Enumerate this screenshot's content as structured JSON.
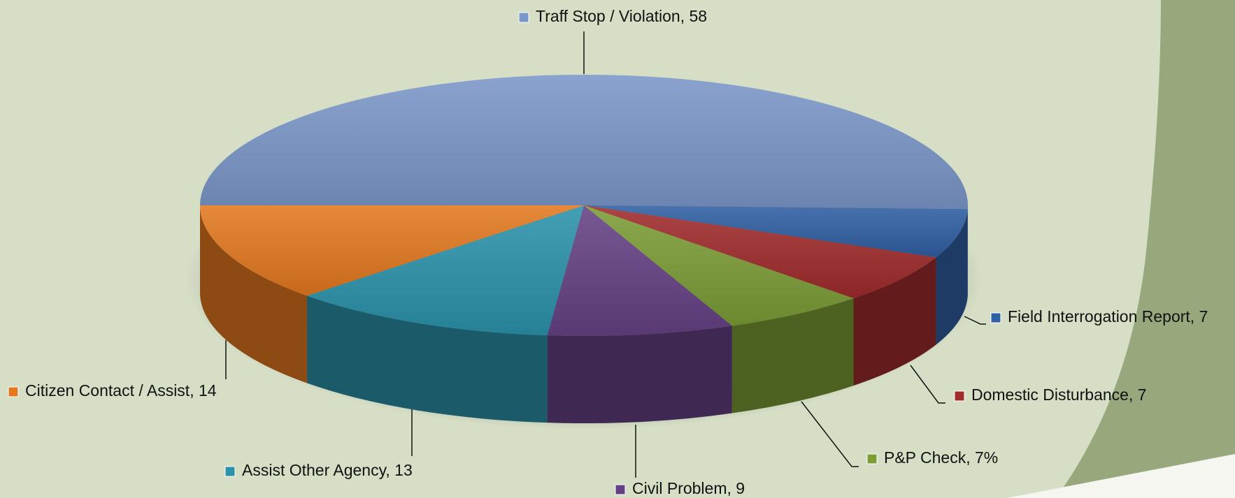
{
  "chart_data": {
    "type": "pie3d",
    "categories": [
      "Traff Stop / Violation",
      "Field Interrogation Report",
      "Domestic Disturbance",
      "P&P Check",
      "Civil Problem",
      "Assist Other Agency",
      "Citizen Contact / Assist"
    ],
    "values": [
      58,
      7,
      7,
      7,
      9,
      13,
      14
    ],
    "value_labels": [
      "Traff Stop / Violation, 58",
      "Field Interrogation Report, 7",
      "Domestic Disturbance, 7",
      "P&P Check, 7%",
      "Civil Problem, 9",
      "Assist Other Agency, 13",
      "Citizen Contact / Assist, 14"
    ],
    "colors": [
      "#7b96c8",
      "#2f5fa3",
      "#a02c2c",
      "#7c9c36",
      "#654183",
      "#2b92aa",
      "#e3781f"
    ]
  }
}
